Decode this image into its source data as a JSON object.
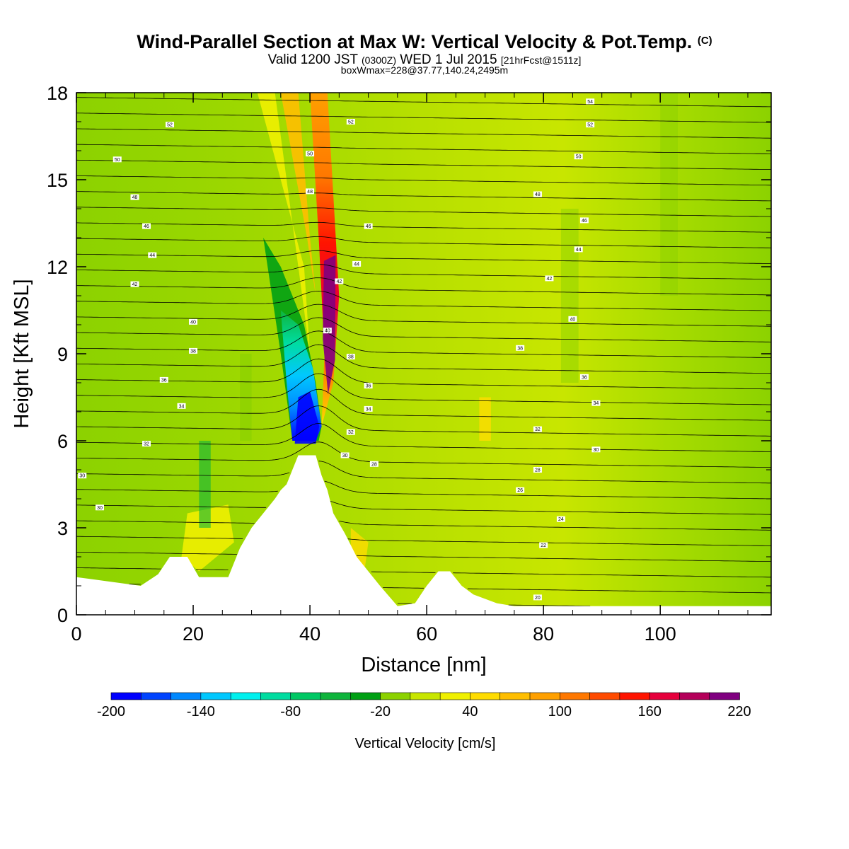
{
  "title": {
    "main": "Wind-Parallel Section at Max W: Vertical Velocity & Pot.Temp.",
    "copyright": "(C)",
    "valid_prefix": "Valid 1200 JST",
    "valid_utc": "(0300Z)",
    "valid_date": "WED 1 Jul 2015",
    "forecast": "[21hrFcst@1511z]",
    "boxinfo": "boxWmax=228@37.77,140.24,2495m"
  },
  "colors": {
    "terrain": "#ffffff",
    "frame": "#000000",
    "contour": "#000000",
    "scale": [
      "#0000ff",
      "#0044ff",
      "#0088ff",
      "#00c8ff",
      "#00f0ee",
      "#00dca0",
      "#00c864",
      "#0fb43c",
      "#00a014",
      "#8cd200",
      "#c8e600",
      "#f0f000",
      "#ffdc00",
      "#ffbe00",
      "#ffa000",
      "#ff7800",
      "#ff4b00",
      "#ff1400",
      "#e6003c",
      "#b4005a",
      "#800080"
    ]
  },
  "chart_data": {
    "type": "heatmap",
    "xlabel": "Distance [nm]",
    "ylabel": "Height [Kft MSL]",
    "xlim": [
      0,
      119
    ],
    "ylim": [
      0,
      18
    ],
    "xticks": [
      0,
      20,
      40,
      60,
      80,
      100
    ],
    "yticks": [
      0,
      3,
      6,
      9,
      12,
      15,
      18
    ],
    "field": "Vertical Velocity (shaded) & Potential Temperature (contours)",
    "colorbar": {
      "label": "Vertical Velocity [cm/s]",
      "min": -200,
      "max": 220,
      "interval": 20,
      "tick_labels": [
        "-200",
        "-140",
        "-80",
        "-20",
        "40",
        "100",
        "160",
        "220"
      ],
      "tick_values": [
        -200,
        -140,
        -80,
        -20,
        40,
        100,
        160,
        220
      ]
    },
    "terrain_profile": {
      "x": [
        0,
        11,
        14,
        16,
        19,
        21,
        26,
        28,
        30,
        32,
        34,
        35,
        36,
        37,
        38,
        41,
        42,
        43,
        44,
        46,
        48,
        52,
        55,
        58,
        60,
        62,
        64,
        66,
        68,
        72,
        75,
        80,
        119
      ],
      "height": [
        1.3,
        1.0,
        1.4,
        2.0,
        2.0,
        1.3,
        1.3,
        2.3,
        3.0,
        3.5,
        4.0,
        4.3,
        4.5,
        5.0,
        5.5,
        5.5,
        4.8,
        4.3,
        3.5,
        2.8,
        2.0,
        1.0,
        0.3,
        0.4,
        1.0,
        1.5,
        1.5,
        1.0,
        0.7,
        0.4,
        0.3,
        0.3,
        0.3
      ]
    },
    "features": [
      {
        "kind": "max_updraft",
        "x": 43,
        "height": 10,
        "value": 228
      },
      {
        "kind": "max_downdraft",
        "x": 40,
        "height": 6.5,
        "value": -200
      }
    ],
    "theta_contours": [
      {
        "theta": 54,
        "x": 88,
        "height": 17.7
      },
      {
        "theta": 52,
        "x": 16,
        "height": 16.9
      },
      {
        "theta": 52,
        "x": 47,
        "height": 17.0
      },
      {
        "theta": 52,
        "x": 88,
        "height": 16.9
      },
      {
        "theta": 50,
        "x": 7,
        "height": 15.7
      },
      {
        "theta": 50,
        "x": 40,
        "height": 15.9
      },
      {
        "theta": 50,
        "x": 86,
        "height": 15.8
      },
      {
        "theta": 48,
        "x": 10,
        "height": 14.4
      },
      {
        "theta": 48,
        "x": 40,
        "height": 14.6
      },
      {
        "theta": 48,
        "x": 79,
        "height": 14.5
      },
      {
        "theta": 46,
        "x": 12,
        "height": 13.4
      },
      {
        "theta": 46,
        "x": 50,
        "height": 13.4
      },
      {
        "theta": 46,
        "x": 87,
        "height": 13.6
      },
      {
        "theta": 44,
        "x": 13,
        "height": 12.4
      },
      {
        "theta": 44,
        "x": 48,
        "height": 12.1
      },
      {
        "theta": 44,
        "x": 86,
        "height": 12.6
      },
      {
        "theta": 42,
        "x": 10,
        "height": 11.4
      },
      {
        "theta": 42,
        "x": 45,
        "height": 11.5
      },
      {
        "theta": 42,
        "x": 81,
        "height": 11.6
      },
      {
        "theta": 40,
        "x": 20,
        "height": 10.1
      },
      {
        "theta": 40,
        "x": 43,
        "height": 9.8
      },
      {
        "theta": 40,
        "x": 85,
        "height": 10.2
      },
      {
        "theta": 38,
        "x": 20,
        "height": 9.1
      },
      {
        "theta": 38,
        "x": 47,
        "height": 8.9
      },
      {
        "theta": 38,
        "x": 76,
        "height": 9.2
      },
      {
        "theta": 36,
        "x": 15,
        "height": 8.1
      },
      {
        "theta": 36,
        "x": 50,
        "height": 7.9
      },
      {
        "theta": 36,
        "x": 87,
        "height": 8.2
      },
      {
        "theta": 34,
        "x": 18,
        "height": 7.2
      },
      {
        "theta": 34,
        "x": 50,
        "height": 7.1
      },
      {
        "theta": 34,
        "x": 89,
        "height": 7.3
      },
      {
        "theta": 32,
        "x": 12,
        "height": 5.9
      },
      {
        "theta": 32,
        "x": 47,
        "height": 6.3
      },
      {
        "theta": 32,
        "x": 79,
        "height": 6.4
      },
      {
        "theta": 30,
        "x": 1,
        "height": 4.8
      },
      {
        "theta": 30,
        "x": 46,
        "height": 5.5
      },
      {
        "theta": 30,
        "x": 89,
        "height": 5.7
      },
      {
        "theta": 30,
        "x": 4,
        "height": 3.7
      },
      {
        "theta": 28,
        "x": 51,
        "height": 5.2
      },
      {
        "theta": 28,
        "x": 79,
        "height": 5.0
      },
      {
        "theta": 26,
        "x": 76,
        "height": 4.3
      },
      {
        "theta": 24,
        "x": 83,
        "height": 3.3
      },
      {
        "theta": 22,
        "x": 80,
        "height": 2.4
      },
      {
        "theta": 20,
        "x": 79,
        "height": 0.6
      }
    ]
  }
}
